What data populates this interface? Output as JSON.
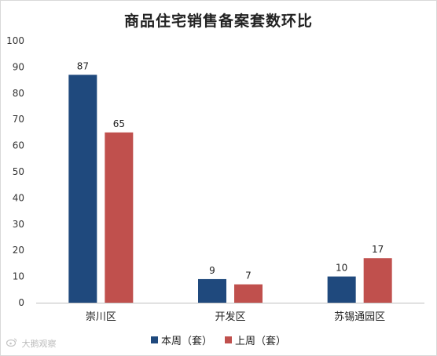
{
  "chart_data": {
    "type": "bar",
    "title": "商品住宅销售备案套数环比",
    "categories": [
      "崇川区",
      "开发区",
      "苏锡通园区"
    ],
    "series": [
      {
        "name": "本周（套）",
        "values": [
          87,
          9,
          10
        ],
        "color": "#1f497d"
      },
      {
        "name": "上周（套）",
        "values": [
          65,
          7,
          17
        ],
        "color": "#c0504d"
      }
    ],
    "ylim": [
      0,
      100
    ],
    "yticks": [
      0,
      10,
      20,
      30,
      40,
      50,
      60,
      70,
      80,
      90,
      100
    ],
    "grid": false,
    "legend": "bottom"
  },
  "watermark": {
    "text": "大鹅观察",
    "icon": "weibo-icon"
  }
}
